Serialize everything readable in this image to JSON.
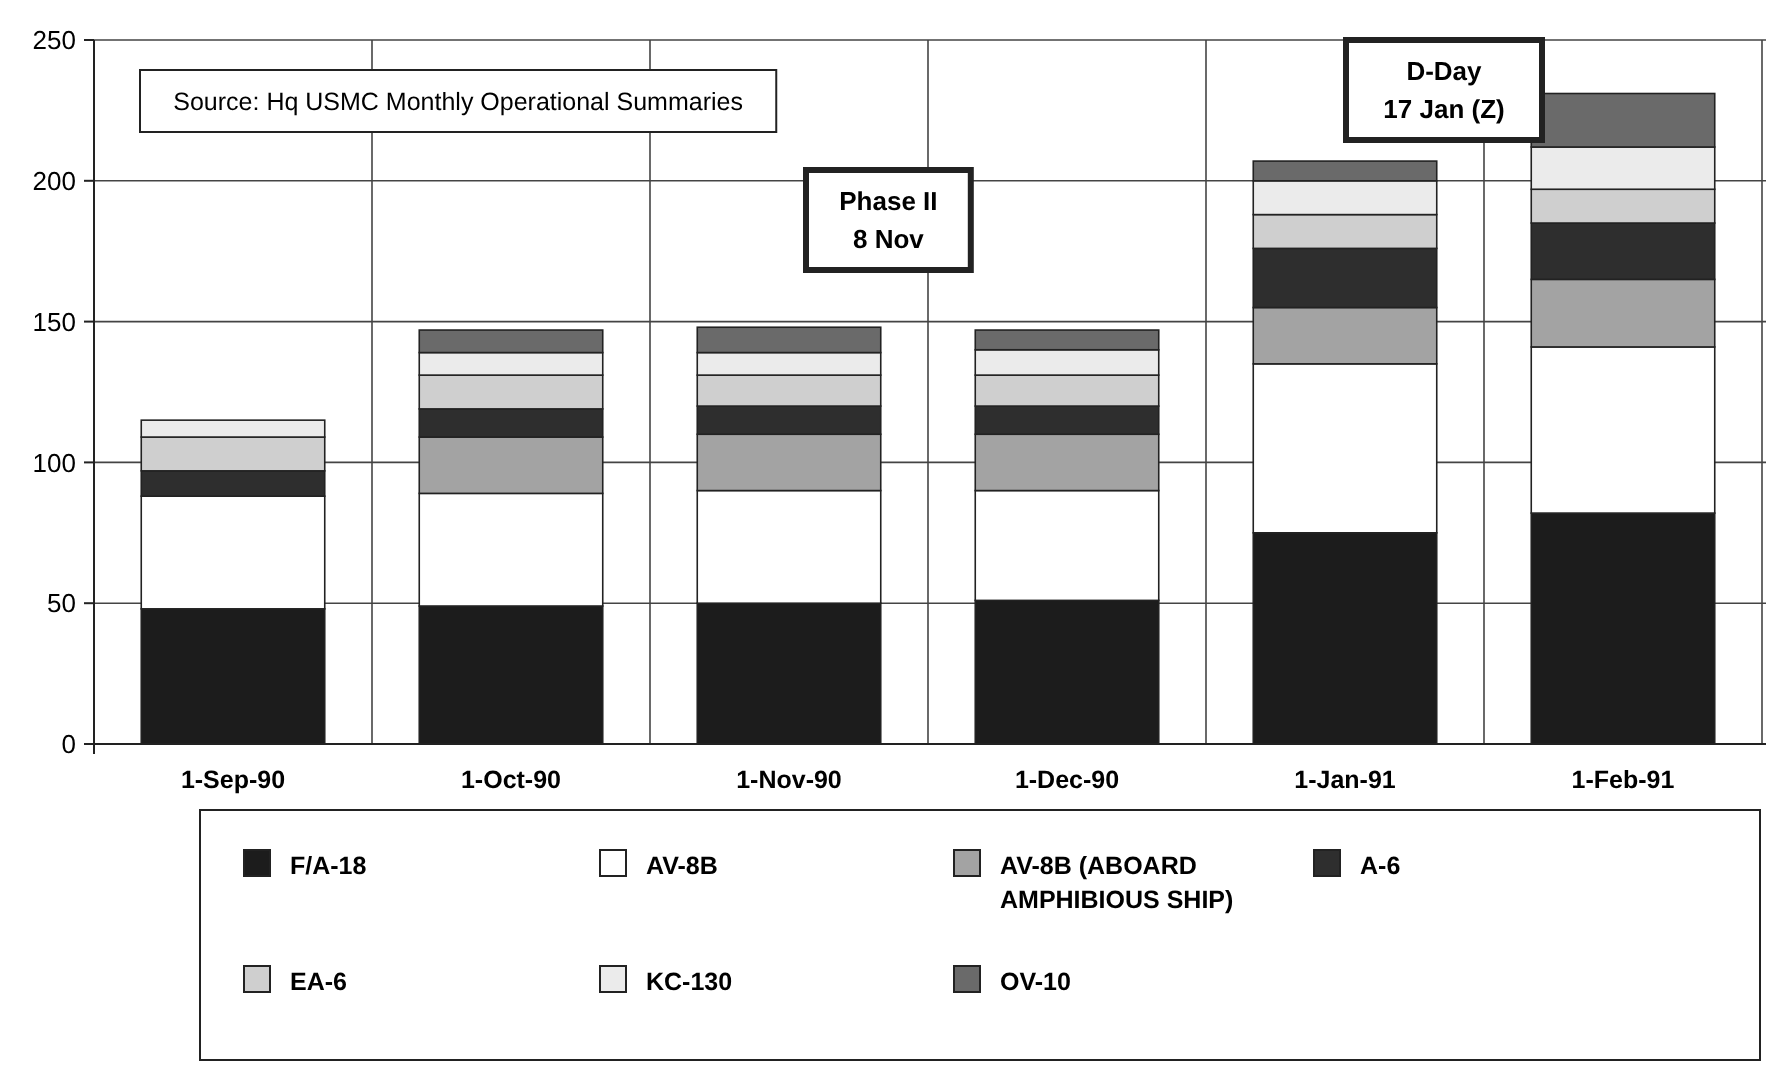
{
  "chart_data": {
    "type": "bar",
    "stacked": true,
    "categories": [
      "1-Sep-90",
      "1-Oct-90",
      "1-Nov-90",
      "1-Dec-90",
      "1-Jan-91",
      "1-Feb-91"
    ],
    "series": [
      {
        "name": "F/A-18",
        "color": "#1c1c1c",
        "values": [
          48,
          49,
          50,
          51,
          75,
          82
        ]
      },
      {
        "name": "AV-8B",
        "color": "#ffffff",
        "values": [
          40,
          40,
          40,
          39,
          60,
          59
        ]
      },
      {
        "name": "AV-8B (ABOARD AMPHIBIOUS SHIP)",
        "color": "#a3a3a3",
        "values": [
          0,
          20,
          20,
          20,
          20,
          24
        ]
      },
      {
        "name": "A-6",
        "color": "#2e2e2e",
        "values": [
          9,
          10,
          10,
          10,
          21,
          20
        ]
      },
      {
        "name": "EA-6",
        "color": "#cfcfcf",
        "values": [
          12,
          12,
          11,
          11,
          12,
          12
        ]
      },
      {
        "name": "KC-130",
        "color": "#ebebeb",
        "values": [
          6,
          8,
          8,
          9,
          12,
          15
        ]
      },
      {
        "name": "OV-10",
        "color": "#6a6a6a",
        "values": [
          0,
          8,
          9,
          7,
          7,
          19
        ]
      }
    ],
    "ylim": [
      0,
      250
    ],
    "yticks": [
      0,
      50,
      100,
      150,
      200,
      250
    ],
    "grid": true,
    "legend": "bottom",
    "annotations": [
      "Source: Hq USMC Monthly Operational Summaries",
      "Phase II\n8 Nov",
      "D-Day\n17 Jan (Z)"
    ]
  }
}
